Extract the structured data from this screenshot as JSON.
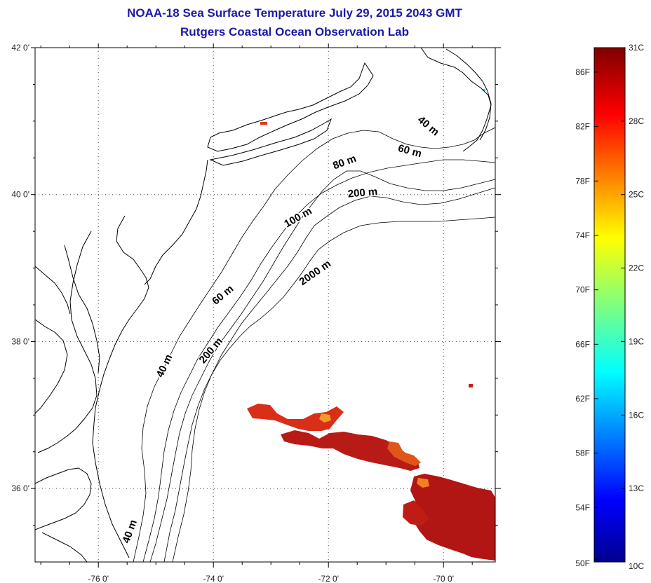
{
  "title": {
    "line1": "NOAA-18 Sea Surface Temperature July 29, 2015 2043 GMT",
    "line2": "Rutgers Coastal Ocean Observation Lab"
  },
  "map": {
    "lat_labels": [
      "42 0'",
      "40 0'",
      "38 0'",
      "36 0'"
    ],
    "lon_labels": [
      "-76 0'",
      "-74 0'",
      "-72 0'",
      "-70 0'"
    ],
    "lat_values": [
      42,
      40,
      38,
      36
    ],
    "lon_values": [
      -76,
      -74,
      -72,
      -70
    ],
    "lon_range": [
      -77.1,
      -69.1
    ],
    "lat_range": [
      35.0,
      42.0
    ],
    "grid": "dotted",
    "contour_labels": [
      {
        "text": "40 m",
        "lon": -70.3,
        "lat": 40.9,
        "angle": 40
      },
      {
        "text": "60 m",
        "lon": -70.6,
        "lat": 40.55,
        "angle": 15
      },
      {
        "text": "80 m",
        "lon": -71.7,
        "lat": 40.4,
        "angle": -20
      },
      {
        "text": "200 m",
        "lon": -71.4,
        "lat": 39.98,
        "angle": -5
      },
      {
        "text": "100 m",
        "lon": -72.5,
        "lat": 39.65,
        "angle": -30
      },
      {
        "text": "2000 m",
        "lon": -72.2,
        "lat": 38.9,
        "angle": -35
      },
      {
        "text": "60 m",
        "lon": -73.8,
        "lat": 38.6,
        "angle": -40
      },
      {
        "text": "200 m",
        "lon": -74.0,
        "lat": 37.85,
        "angle": -50
      },
      {
        "text": "40 m",
        "lon": -74.8,
        "lat": 37.65,
        "angle": -65
      },
      {
        "text": "40 m",
        "lon": -75.4,
        "lat": 35.4,
        "angle": -70
      }
    ]
  },
  "colorbar": {
    "fahrenheit_labels": [
      "86F",
      "82F",
      "78F",
      "74F",
      "70F",
      "66F",
      "62F",
      "58F",
      "54F",
      "50F"
    ],
    "fahrenheit_values": [
      86,
      82,
      78,
      74,
      70,
      66,
      62,
      58,
      54,
      50
    ],
    "celsius_labels": [
      "31C",
      "28C",
      "25C",
      "22C",
      "19C",
      "16C",
      "13C",
      "10C"
    ],
    "celsius_values": [
      31,
      28,
      25,
      22,
      19,
      16,
      13,
      10
    ],
    "range_c": [
      10,
      31
    ],
    "colormap": "jet"
  },
  "colors": {
    "title": "#1a1aa8",
    "sst_main": "#c8231a",
    "sst_dark": "#a81414",
    "sst_warm": "#e04a14"
  }
}
